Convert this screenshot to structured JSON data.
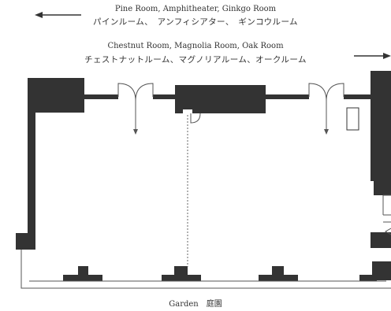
{
  "directions": {
    "left": {
      "en": "Pine Room, Amphitheater, Ginkgo Room",
      "ja": "パインルーム、　アンフィシアター、　ギンコウルーム"
    },
    "right": {
      "en": "Chestnut Room, Magnolia Room, Oak Room",
      "ja": "チェストナットルーム、マグノリアルーム、オークルーム"
    }
  },
  "garden": {
    "en": "Garden",
    "ja": "庭園"
  },
  "colors": {
    "wall": "#333333",
    "line": "#555555",
    "text": "#333333",
    "background": "#ffffff"
  }
}
